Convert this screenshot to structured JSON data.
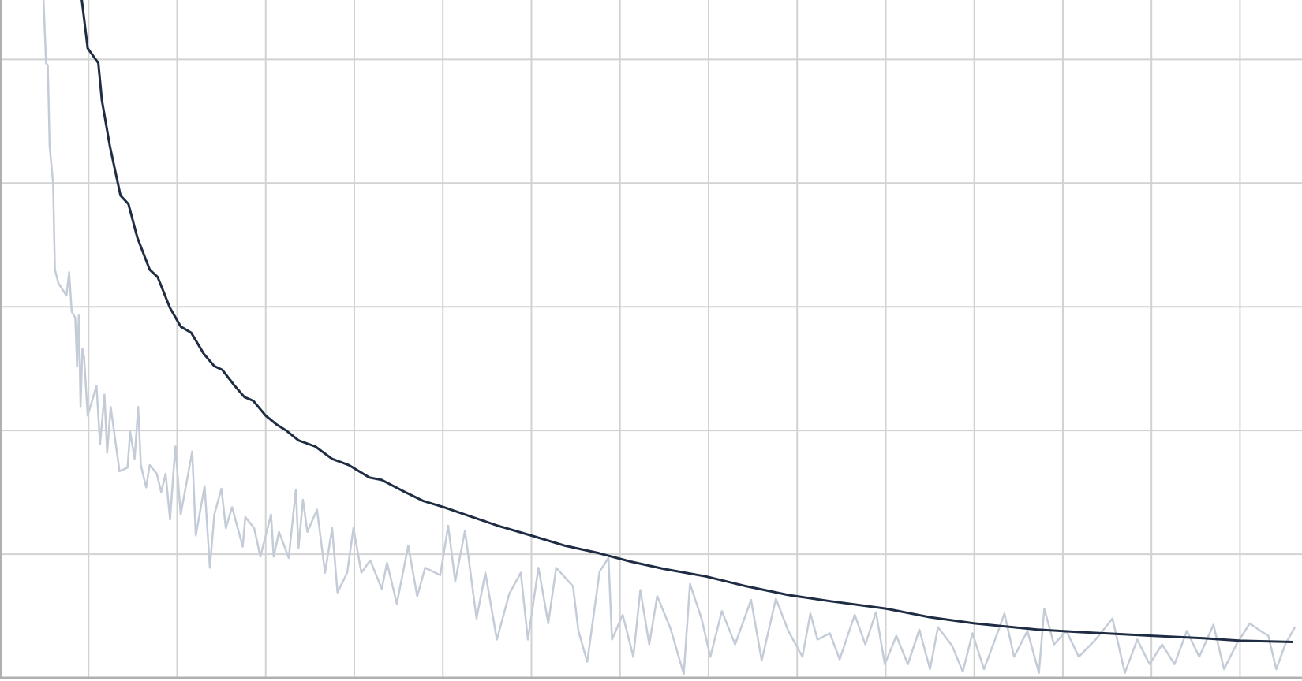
{
  "chart_data": {
    "type": "line",
    "xlim": [
      0,
      14.7
    ],
    "ylim": [
      0,
      5.48
    ],
    "xticks": [
      1,
      2,
      3,
      4,
      5,
      6,
      7,
      8,
      9,
      10,
      11,
      12,
      13,
      14
    ],
    "yticks": [
      1,
      2,
      3,
      4,
      5
    ],
    "grid": true,
    "series": [
      {
        "color": "#c4ccd8",
        "x": [
          0.49,
          0.52,
          0.54,
          0.56,
          0.6,
          0.62,
          0.66,
          0.75,
          0.78,
          0.81,
          0.85,
          0.87,
          0.89,
          0.91,
          0.93,
          0.95,
          0.99,
          1.09,
          1.13,
          1.18,
          1.21,
          1.25,
          1.35,
          1.44,
          1.47,
          1.52,
          1.56,
          1.59,
          1.65,
          1.69,
          1.77,
          1.82,
          1.87,
          1.92,
          1.98,
          2.04,
          2.17,
          2.21,
          2.31,
          2.37,
          2.42,
          2.5,
          2.55,
          2.62,
          2.74,
          2.77,
          2.87,
          2.94,
          3.0,
          3.06,
          3.09,
          3.15,
          3.26,
          3.34,
          3.37,
          3.42,
          3.47,
          3.58,
          3.67,
          3.75,
          3.81,
          3.92,
          3.99,
          4.08,
          4.18,
          4.31,
          4.37,
          4.48,
          4.61,
          4.71,
          4.8,
          4.97,
          5.06,
          5.14,
          5.25,
          5.38,
          5.48,
          5.61,
          5.75,
          5.88,
          5.96,
          6.08,
          6.19,
          6.28,
          6.47,
          6.53,
          6.63,
          6.77,
          6.87,
          6.91,
          7.03,
          7.15,
          7.23,
          7.33,
          7.42,
          7.57,
          7.72,
          7.79,
          7.92,
          8.02,
          8.15,
          8.3,
          8.48,
          8.6,
          8.76,
          8.9,
          9.06,
          9.15,
          9.23,
          9.37,
          9.48,
          9.65,
          9.77,
          9.89,
          9.99,
          10.12,
          10.25,
          10.38,
          10.5,
          10.59,
          10.75,
          10.87,
          10.98,
          11.11,
          11.25,
          11.34,
          11.45,
          11.6,
          11.73,
          11.79,
          11.9,
          12.04,
          12.18,
          12.37,
          12.56,
          12.7,
          12.84,
          12.98,
          13.12,
          13.26,
          13.4,
          13.54,
          13.7,
          13.82,
          13.96,
          14.11,
          14.23,
          14.32,
          14.41,
          14.51,
          14.62
        ],
        "values": [
          5.5,
          4.97,
          4.95,
          4.3,
          4.0,
          3.3,
          3.19,
          3.09,
          3.28,
          2.96,
          2.91,
          2.52,
          2.93,
          2.19,
          2.66,
          2.59,
          2.12,
          2.36,
          1.89,
          2.29,
          1.82,
          2.19,
          1.67,
          1.7,
          1.99,
          1.77,
          2.19,
          1.72,
          1.54,
          1.72,
          1.65,
          1.5,
          1.65,
          1.28,
          1.87,
          1.32,
          1.83,
          1.15,
          1.55,
          0.89,
          1.32,
          1.53,
          1.21,
          1.38,
          1.06,
          1.3,
          1.21,
          0.98,
          1.15,
          1.32,
          0.98,
          1.18,
          0.97,
          1.52,
          1.05,
          1.44,
          1.18,
          1.36,
          0.85,
          1.21,
          0.69,
          0.85,
          1.21,
          0.85,
          0.95,
          0.72,
          0.93,
          0.6,
          1.07,
          0.66,
          0.89,
          0.83,
          1.23,
          0.78,
          1.19,
          0.48,
          0.85,
          0.31,
          0.68,
          0.85,
          0.31,
          0.89,
          0.44,
          0.89,
          0.74,
          0.38,
          0.13,
          0.86,
          0.97,
          0.31,
          0.51,
          0.17,
          0.71,
          0.27,
          0.66,
          0.4,
          0.03,
          0.76,
          0.48,
          0.17,
          0.54,
          0.27,
          0.63,
          0.14,
          0.64,
          0.38,
          0.17,
          0.52,
          0.31,
          0.36,
          0.15,
          0.51,
          0.27,
          0.53,
          0.11,
          0.34,
          0.11,
          0.39,
          0.07,
          0.41,
          0.26,
          0.05,
          0.36,
          0.07,
          0.34,
          0.52,
          0.17,
          0.38,
          0.04,
          0.56,
          0.27,
          0.38,
          0.17,
          0.31,
          0.48,
          0.04,
          0.31,
          0.11,
          0.27,
          0.11,
          0.38,
          0.17,
          0.43,
          0.07,
          0.27,
          0.44,
          0.38,
          0.34,
          0.07,
          0.27,
          0.41
        ]
      },
      {
        "color": "#1f2d44",
        "x": [
          0.92,
          0.99,
          1.11,
          1.15,
          1.24,
          1.36,
          1.45,
          1.55,
          1.69,
          1.78,
          1.92,
          2.04,
          2.16,
          2.3,
          2.42,
          2.51,
          2.64,
          2.76,
          2.86,
          3.0,
          3.12,
          3.23,
          3.37,
          3.56,
          3.75,
          3.94,
          4.17,
          4.31,
          4.55,
          4.78,
          5.01,
          5.25,
          5.62,
          6.0,
          6.37,
          6.75,
          7.12,
          7.5,
          7.97,
          8.43,
          8.9,
          9.37,
          10.0,
          10.5,
          11.0,
          11.71,
          12.18,
          13.0,
          13.59,
          14.0,
          14.6
        ],
        "values": [
          5.5,
          5.09,
          4.97,
          4.67,
          4.3,
          3.9,
          3.83,
          3.56,
          3.3,
          3.24,
          2.99,
          2.84,
          2.79,
          2.62,
          2.52,
          2.49,
          2.37,
          2.27,
          2.24,
          2.12,
          2.05,
          2.0,
          1.92,
          1.87,
          1.77,
          1.72,
          1.62,
          1.6,
          1.51,
          1.43,
          1.38,
          1.32,
          1.23,
          1.15,
          1.07,
          1.01,
          0.94,
          0.88,
          0.82,
          0.74,
          0.67,
          0.62,
          0.56,
          0.49,
          0.44,
          0.39,
          0.37,
          0.34,
          0.32,
          0.3,
          0.29
        ]
      }
    ]
  }
}
